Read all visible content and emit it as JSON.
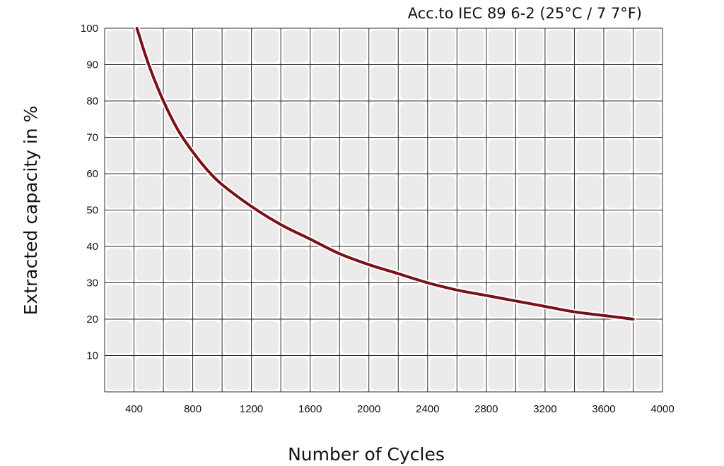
{
  "chart_data": {
    "type": "line",
    "title": "Acc.to IEC 89 6-2 (25°C / 7 7°F)",
    "xlabel": "Number of Cycles",
    "ylabel": "Extracted capacity in %",
    "xlim": [
      200,
      4000
    ],
    "ylim": [
      0,
      100
    ],
    "x_ticks": [
      400,
      800,
      1200,
      1600,
      2000,
      2400,
      2800,
      3200,
      3600,
      4000
    ],
    "y_ticks": [
      10,
      20,
      30,
      40,
      50,
      60,
      70,
      80,
      90,
      100
    ],
    "grid": true,
    "series": [
      {
        "color": "#7a1018",
        "x": [
          420,
          500,
          600,
          700,
          800,
          900,
          1000,
          1200,
          1400,
          1600,
          1800,
          2000,
          2200,
          2400,
          2600,
          2800,
          3000,
          3200,
          3400,
          3600,
          3800
        ],
        "y": [
          100,
          90,
          80,
          72,
          66,
          61,
          57,
          51,
          46,
          42,
          38,
          35,
          32.5,
          30,
          28,
          26.5,
          25,
          23.5,
          22,
          21,
          20
        ]
      }
    ]
  }
}
